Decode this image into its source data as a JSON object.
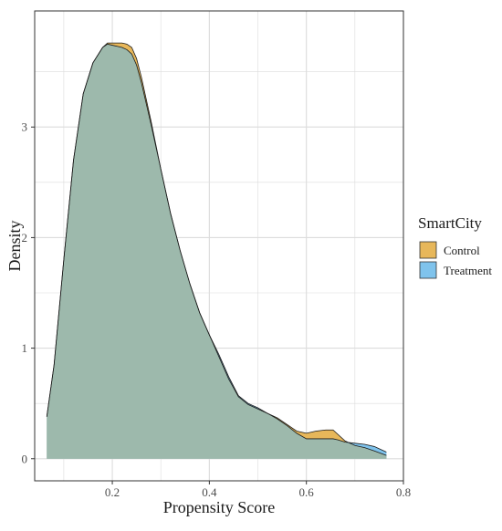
{
  "chart_data": {
    "type": "area",
    "title": "",
    "xlabel": "Propensity Score",
    "ylabel": "Density",
    "xlim": [
      0.04,
      0.8
    ],
    "ylim": [
      -0.2,
      4.05
    ],
    "xticks": [
      0.2,
      0.4,
      0.6,
      0.8
    ],
    "xtick_labels": [
      "0.2",
      "0.4",
      "0.6",
      "0.8"
    ],
    "yticks": [
      0,
      1,
      2,
      3
    ],
    "ytick_labels": [
      "0",
      "1",
      "2",
      "3"
    ],
    "grid": true,
    "legend": {
      "title": "SmartCity",
      "placement": "right"
    },
    "series": [
      {
        "name": "Control",
        "color": "#E7B75A",
        "x": [
          0.065,
          0.08,
          0.1,
          0.12,
          0.14,
          0.16,
          0.18,
          0.19,
          0.2,
          0.21,
          0.22,
          0.23,
          0.24,
          0.25,
          0.26,
          0.28,
          0.3,
          0.32,
          0.34,
          0.36,
          0.38,
          0.4,
          0.42,
          0.44,
          0.46,
          0.48,
          0.5,
          0.52,
          0.54,
          0.56,
          0.58,
          0.6,
          0.62,
          0.64,
          0.655,
          0.665,
          0.68,
          0.7,
          0.72,
          0.74,
          0.765
        ],
        "values": [
          0.38,
          0.85,
          1.8,
          2.7,
          3.3,
          3.58,
          3.72,
          3.76,
          3.76,
          3.76,
          3.76,
          3.75,
          3.72,
          3.62,
          3.45,
          3.05,
          2.62,
          2.22,
          1.88,
          1.58,
          1.32,
          1.12,
          0.92,
          0.72,
          0.56,
          0.49,
          0.45,
          0.41,
          0.37,
          0.31,
          0.25,
          0.23,
          0.25,
          0.26,
          0.26,
          0.22,
          0.16,
          0.12,
          0.1,
          0.07,
          0.03
        ]
      },
      {
        "name": "Treatment",
        "color": "#7FC3EC",
        "x": [
          0.065,
          0.08,
          0.1,
          0.12,
          0.14,
          0.16,
          0.18,
          0.19,
          0.2,
          0.21,
          0.22,
          0.23,
          0.24,
          0.25,
          0.26,
          0.28,
          0.3,
          0.32,
          0.34,
          0.36,
          0.38,
          0.4,
          0.42,
          0.44,
          0.46,
          0.48,
          0.5,
          0.52,
          0.54,
          0.56,
          0.58,
          0.6,
          0.62,
          0.64,
          0.655,
          0.665,
          0.68,
          0.7,
          0.72,
          0.74,
          0.765
        ],
        "values": [
          0.38,
          0.85,
          1.8,
          2.7,
          3.3,
          3.58,
          3.72,
          3.75,
          3.74,
          3.73,
          3.72,
          3.7,
          3.66,
          3.56,
          3.4,
          3.02,
          2.62,
          2.22,
          1.88,
          1.58,
          1.32,
          1.12,
          0.94,
          0.74,
          0.57,
          0.5,
          0.46,
          0.41,
          0.36,
          0.3,
          0.23,
          0.18,
          0.18,
          0.18,
          0.18,
          0.17,
          0.15,
          0.14,
          0.13,
          0.11,
          0.06
        ]
      }
    ],
    "overlap_color": "#9DB9AC",
    "outline_color": "#1a1a1a",
    "grid_color": "#DCDCDC",
    "panel_border_color": "#333333"
  }
}
